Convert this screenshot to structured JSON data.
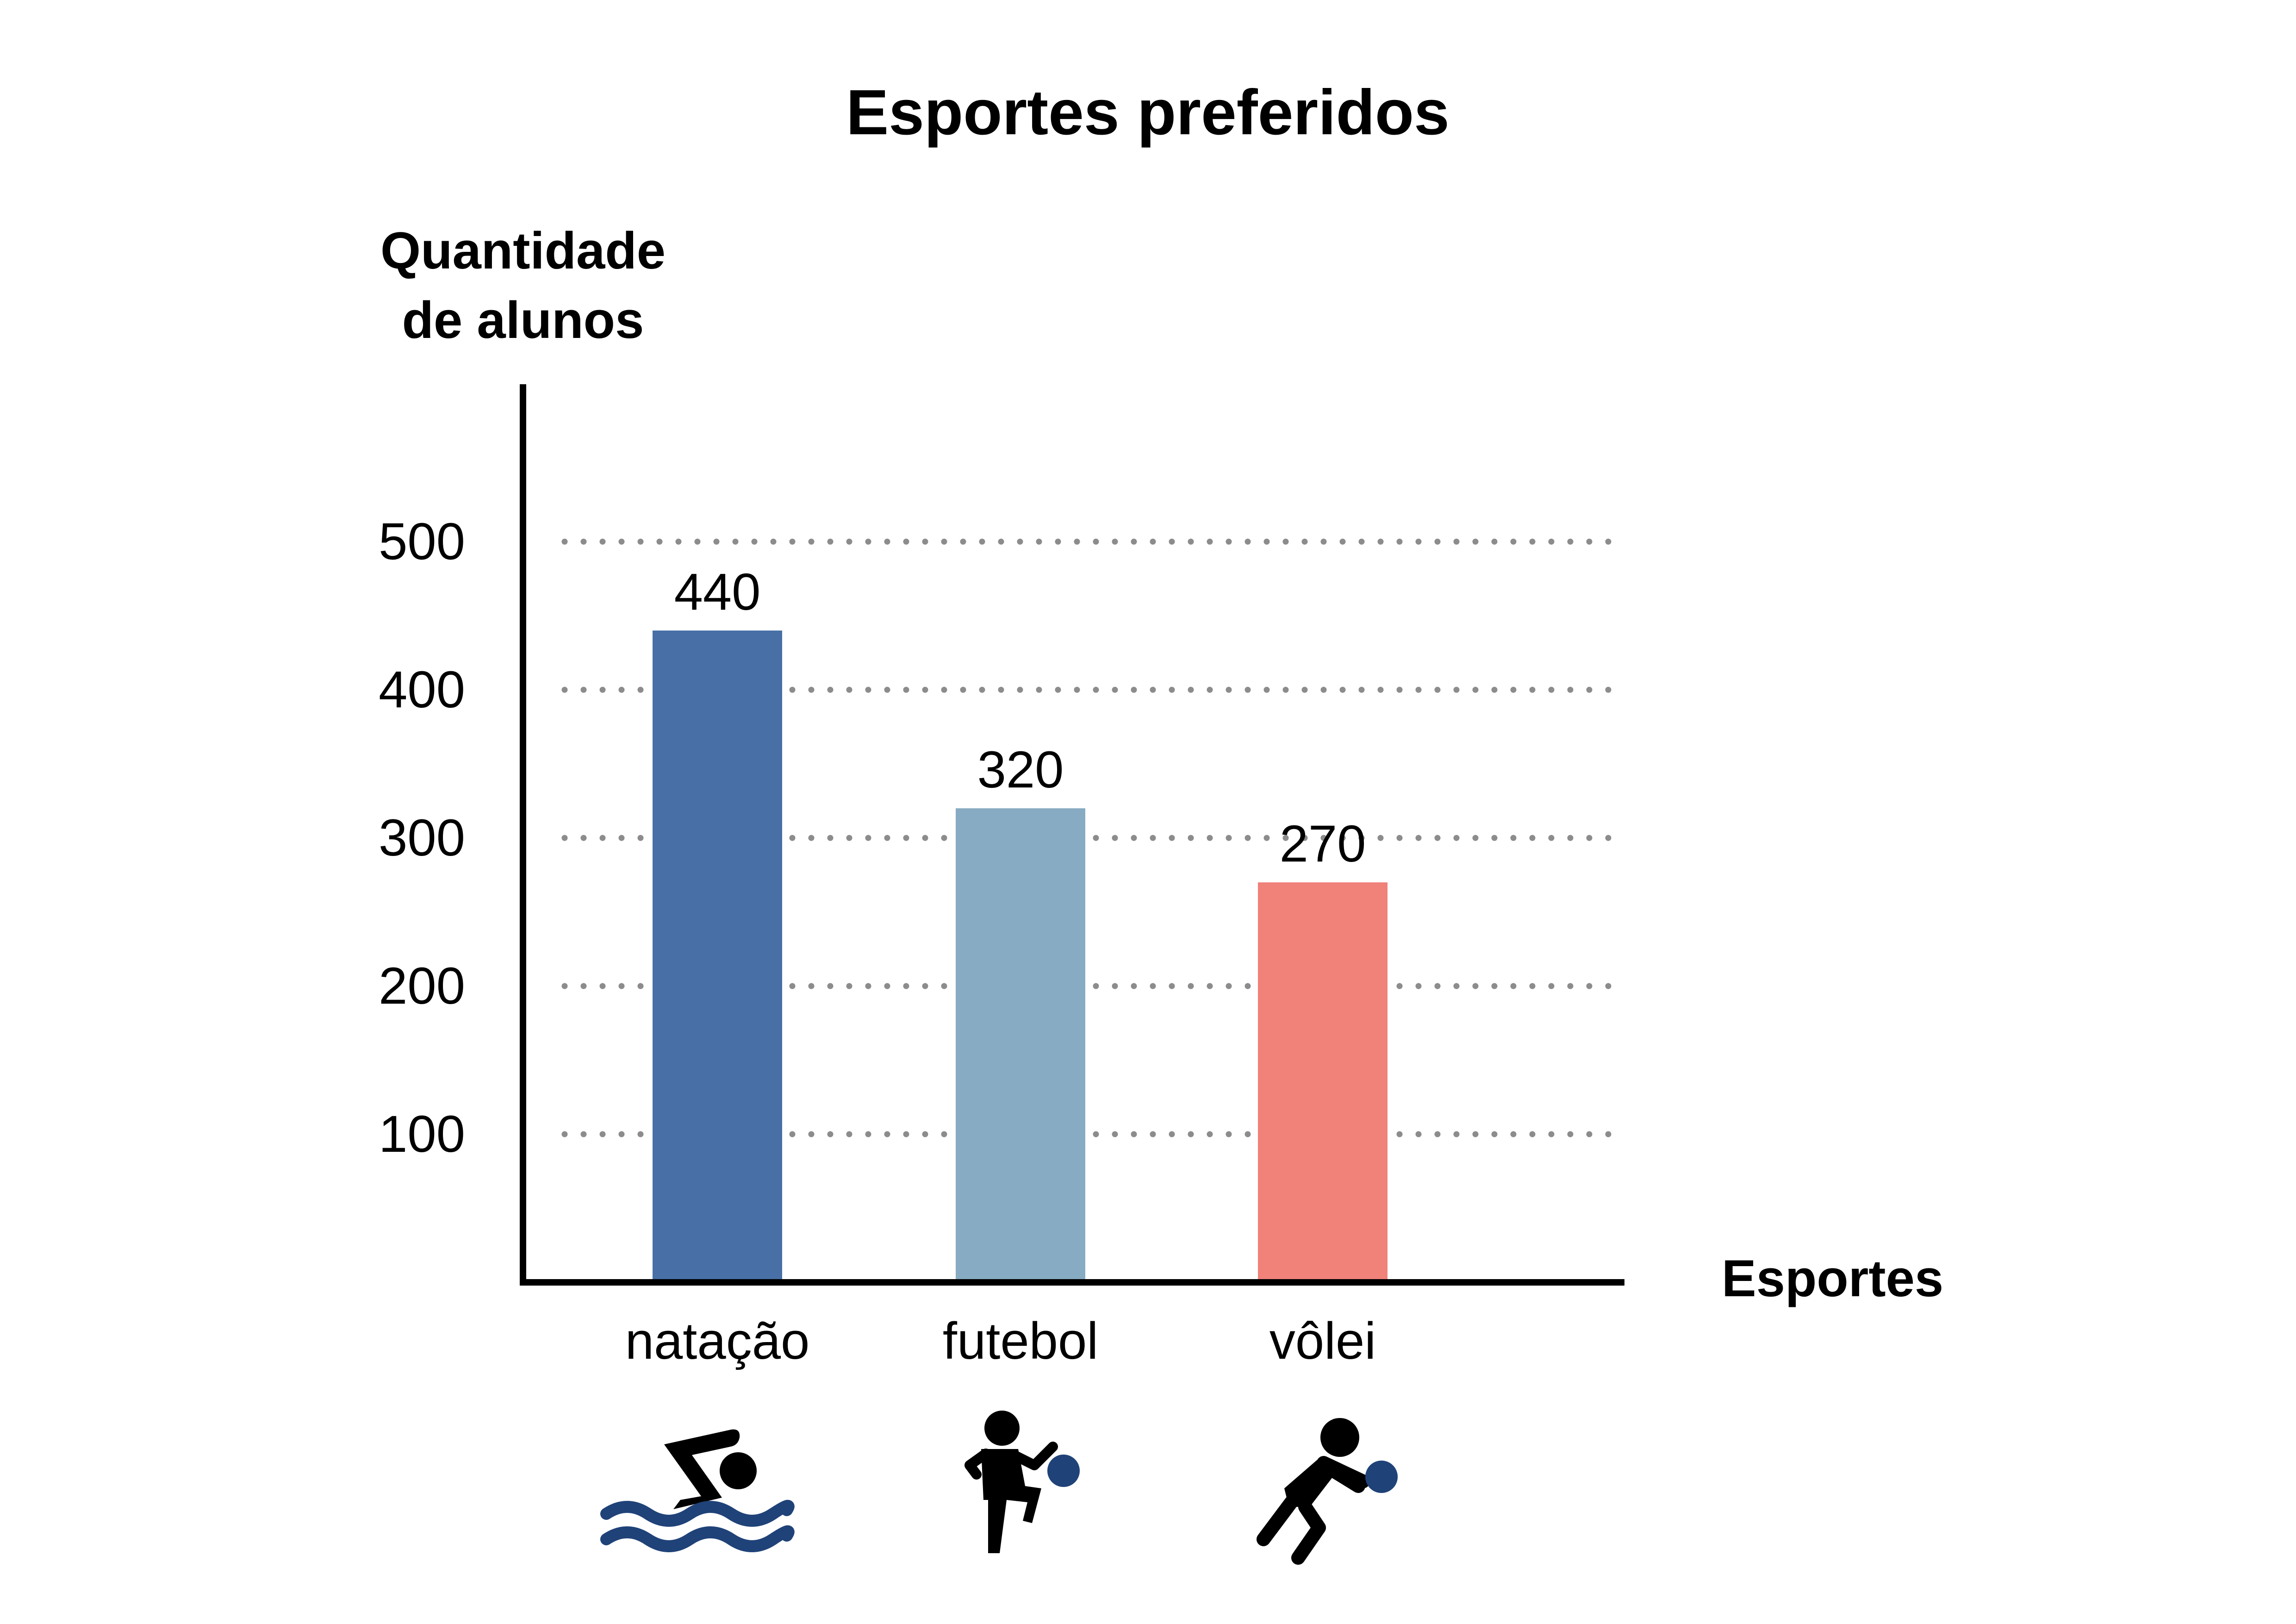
{
  "chart_data": {
    "type": "bar",
    "title": "Esportes preferidos",
    "ylabel": [
      "Quantidade",
      "de alunos"
    ],
    "xlabel": "Esportes",
    "categories": [
      "natação",
      "futebol",
      "vôlei"
    ],
    "values": [
      440,
      320,
      270
    ],
    "data_labels": [
      "440",
      "320",
      "270"
    ],
    "yticks": [
      100,
      200,
      300,
      400,
      500
    ],
    "ytick_labels": [
      "100",
      "200",
      "300",
      "400",
      "500"
    ],
    "ylim": [
      0,
      600
    ],
    "grid": "horizontal dotted",
    "legend": "none",
    "colors": [
      "#4870a6",
      "#87abc2",
      "#f0827a"
    ],
    "icons": [
      "swimmer-icon",
      "soccer-player-icon",
      "volleyball-player-icon"
    ],
    "icon_ball_color": "#1f4278",
    "icon_water_color": "#1f4278"
  }
}
